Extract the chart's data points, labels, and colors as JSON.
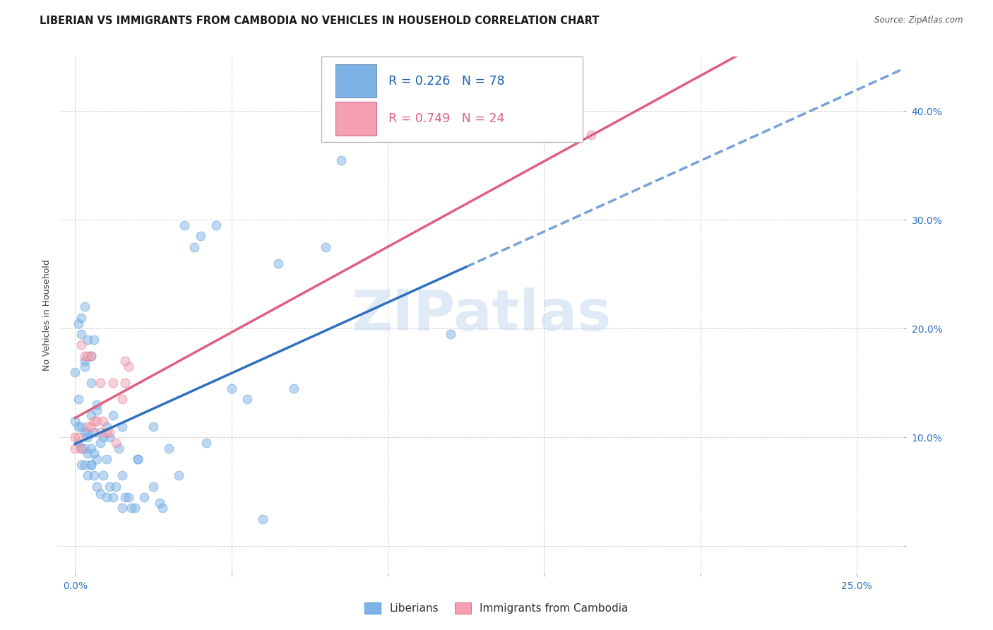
{
  "title": "LIBERIAN VS IMMIGRANTS FROM CAMBODIA NO VEHICLES IN HOUSEHOLD CORRELATION CHART",
  "source": "Source: ZipAtlas.com",
  "ylabel": "No Vehicles in Household",
  "xlabel_tick_vals": [
    0.0,
    0.05,
    0.1,
    0.15,
    0.2,
    0.25
  ],
  "xlabel_tick_labels": [
    "0.0%",
    "",
    "",
    "",
    "",
    "25.0%"
  ],
  "ylabel_tick_vals": [
    0.0,
    0.1,
    0.2,
    0.3,
    0.4
  ],
  "ylabel_tick_labels": [
    "",
    "10.0%",
    "20.0%",
    "30.0%",
    "40.0%"
  ],
  "xlim": [
    -0.005,
    0.265
  ],
  "ylim": [
    -0.025,
    0.45
  ],
  "watermark": "ZIPatlas",
  "lib_R": "0.226",
  "lib_N": "78",
  "cam_R": "0.749",
  "cam_N": "24",
  "liberian_x": [
    0.0,
    0.0,
    0.001,
    0.001,
    0.001,
    0.002,
    0.002,
    0.002,
    0.002,
    0.003,
    0.003,
    0.003,
    0.003,
    0.004,
    0.004,
    0.004,
    0.004,
    0.005,
    0.005,
    0.005,
    0.005,
    0.006,
    0.006,
    0.006,
    0.007,
    0.007,
    0.007,
    0.008,
    0.009,
    0.009,
    0.01,
    0.01,
    0.011,
    0.011,
    0.012,
    0.013,
    0.014,
    0.015,
    0.015,
    0.016,
    0.017,
    0.018,
    0.019,
    0.02,
    0.022,
    0.025,
    0.027,
    0.028,
    0.03,
    0.033,
    0.035,
    0.038,
    0.04,
    0.042,
    0.045,
    0.05,
    0.055,
    0.06,
    0.065,
    0.07,
    0.08,
    0.085,
    0.12,
    0.001,
    0.002,
    0.003,
    0.003,
    0.004,
    0.005,
    0.005,
    0.006,
    0.007,
    0.008,
    0.01,
    0.012,
    0.015,
    0.02,
    0.025
  ],
  "liberian_y": [
    0.115,
    0.16,
    0.095,
    0.11,
    0.135,
    0.075,
    0.09,
    0.11,
    0.195,
    0.075,
    0.09,
    0.105,
    0.17,
    0.065,
    0.085,
    0.1,
    0.19,
    0.075,
    0.09,
    0.12,
    0.15,
    0.065,
    0.085,
    0.105,
    0.055,
    0.08,
    0.13,
    0.048,
    0.065,
    0.1,
    0.045,
    0.08,
    0.055,
    0.1,
    0.045,
    0.055,
    0.09,
    0.035,
    0.11,
    0.045,
    0.045,
    0.035,
    0.035,
    0.08,
    0.045,
    0.11,
    0.04,
    0.035,
    0.09,
    0.065,
    0.295,
    0.275,
    0.285,
    0.095,
    0.295,
    0.145,
    0.135,
    0.025,
    0.26,
    0.145,
    0.275,
    0.355,
    0.195,
    0.205,
    0.21,
    0.165,
    0.22,
    0.105,
    0.075,
    0.175,
    0.19,
    0.125,
    0.095,
    0.11,
    0.12,
    0.065,
    0.08,
    0.055
  ],
  "cambodia_x": [
    0.0,
    0.0,
    0.001,
    0.002,
    0.002,
    0.003,
    0.004,
    0.004,
    0.005,
    0.005,
    0.006,
    0.007,
    0.008,
    0.008,
    0.009,
    0.01,
    0.011,
    0.012,
    0.013,
    0.015,
    0.016,
    0.016,
    0.017,
    0.165
  ],
  "cambodia_y": [
    0.09,
    0.1,
    0.1,
    0.09,
    0.185,
    0.175,
    0.11,
    0.175,
    0.11,
    0.175,
    0.115,
    0.115,
    0.15,
    0.105,
    0.115,
    0.105,
    0.105,
    0.15,
    0.095,
    0.135,
    0.15,
    0.17,
    0.165,
    0.378
  ],
  "liberian_color": "#7eb3e8",
  "liberian_edge": "#5a9fd4",
  "cambodia_color": "#f4a0b0",
  "cambodia_edge": "#e07090",
  "regression_lib_color": "#3070c0",
  "regression_cam_color": "#e06080",
  "background_color": "#ffffff",
  "grid_color": "#cccccc",
  "title_fontsize": 10.5,
  "axis_label_fontsize": 9,
  "tick_fontsize": 10,
  "watermark_color": "#c8d8f0",
  "watermark_fontsize": 58,
  "scatter_size": 85,
  "scatter_alpha": 0.5,
  "line_width": 2.5,
  "lib_line_solid_xmax": 0.125,
  "cam_line_xmax": 0.25
}
